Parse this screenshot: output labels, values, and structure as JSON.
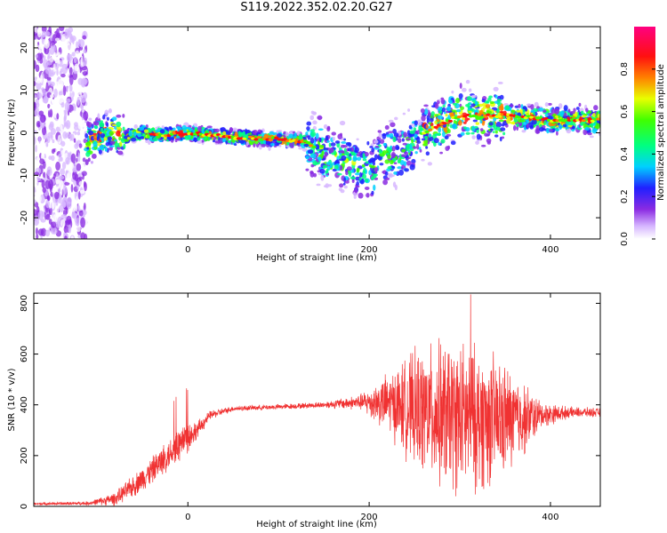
{
  "title": "S119.2022.352.02.20.G27",
  "chart_data": [
    {
      "type": "heatmap",
      "xlabel": "Height of straight line (km)",
      "ylabel": "Frequency (Hz)",
      "xlim": [
        -170,
        455
      ],
      "ylim": [
        -25,
        25
      ],
      "x_ticks": [
        0,
        200,
        400
      ],
      "y_ticks": [
        20,
        10,
        0,
        -10,
        -20
      ],
      "colorbar": {
        "label": "Normalized spectral amplitude",
        "range": [
          0,
          1
        ],
        "ticks": [
          "0.0",
          "0.2",
          "0.4",
          "0.6",
          "0.8"
        ]
      },
      "ridge": {
        "x": [
          -110,
          -90,
          -70,
          -50,
          -30,
          0,
          50,
          100,
          130,
          150,
          175,
          200,
          220,
          240,
          260,
          280,
          300,
          330,
          360,
          400,
          455
        ],
        "frequency": [
          -2,
          0,
          -1,
          0,
          -0.5,
          0,
          -1,
          -1.5,
          -2,
          -5,
          -7,
          -9,
          -5,
          -4,
          0,
          2,
          4,
          4,
          4,
          3,
          3
        ]
      }
    },
    {
      "type": "line",
      "xlabel": "Height of straight line (km)",
      "ylabel": "SNR (10 * v/v)",
      "xlim": [
        -170,
        455
      ],
      "ylim": [
        0,
        840
      ],
      "x_ticks": [
        0,
        200,
        400
      ],
      "y_ticks": [
        0,
        200,
        400,
        600,
        800
      ],
      "color": "#f03232",
      "envelope_x": [
        -170,
        -110,
        -80,
        -60,
        -40,
        -20,
        -5,
        10,
        25,
        50,
        100,
        150,
        190,
        220,
        250,
        280,
        310,
        340,
        370,
        390,
        420,
        455
      ],
      "envelope_mean": [
        10,
        12,
        30,
        80,
        140,
        210,
        260,
        300,
        360,
        385,
        392,
        400,
        410,
        410,
        380,
        360,
        345,
        340,
        345,
        360,
        370,
        370
      ],
      "envelope_amp": [
        6,
        8,
        30,
        50,
        60,
        70,
        90,
        40,
        20,
        12,
        12,
        14,
        35,
        130,
        260,
        330,
        340,
        290,
        170,
        60,
        25,
        20
      ],
      "peak": {
        "x": 312,
        "value": 835
      }
    }
  ]
}
